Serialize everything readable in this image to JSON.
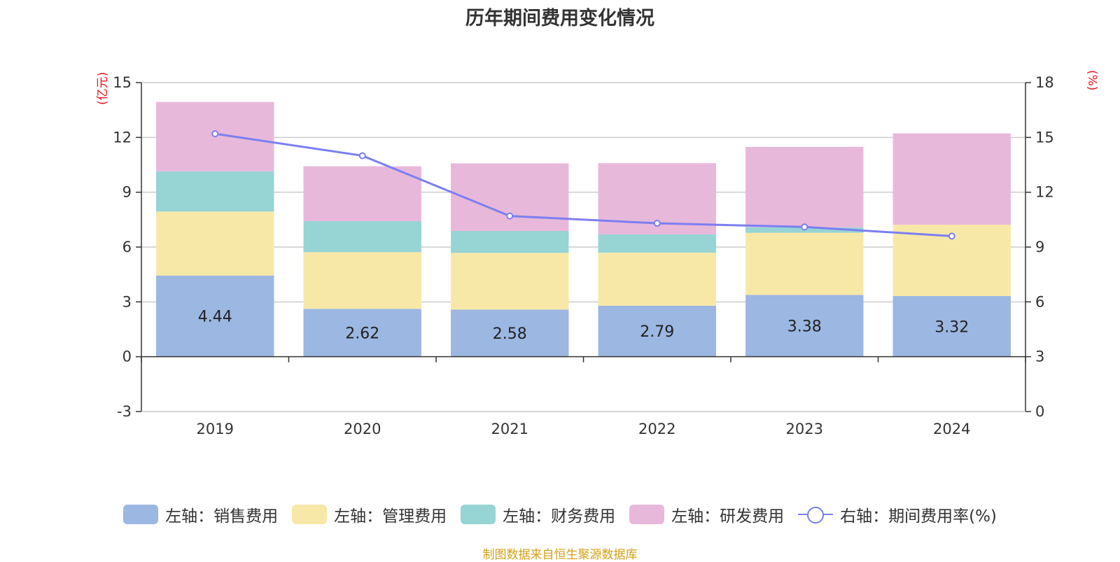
{
  "title": "历年期间费用变化情况",
  "left_unit": "(亿元)",
  "right_unit": "(%)",
  "source": "制图数据来自恒生聚源数据库",
  "chart_data": {
    "type": "bar",
    "stacked": true,
    "categories": [
      "2019",
      "2020",
      "2021",
      "2022",
      "2023",
      "2024"
    ],
    "series": [
      {
        "name": "左轴：销售费用",
        "axis": "left",
        "color": "#9bb7e2",
        "values": [
          4.44,
          2.62,
          2.58,
          2.79,
          3.38,
          3.32
        ],
        "labels": [
          "4.44",
          "2.62",
          "2.58",
          "2.79",
          "3.38",
          "3.32"
        ]
      },
      {
        "name": "左轴：管理费用",
        "axis": "left",
        "color": "#f8e8a8",
        "values": [
          3.5,
          3.1,
          3.1,
          2.9,
          3.4,
          3.9
        ]
      },
      {
        "name": "左轴：财务费用",
        "axis": "left",
        "color": "#97d4d4",
        "values": [
          2.2,
          1.7,
          1.2,
          1.0,
          0.3,
          0.0
        ]
      },
      {
        "name": "左轴：研发费用",
        "axis": "left",
        "color": "#e8b8da",
        "values": [
          3.8,
          3.0,
          3.7,
          3.9,
          4.4,
          5.0
        ]
      },
      {
        "name": "右轴：期间费用率(%)",
        "axis": "right",
        "type": "line",
        "color": "#7b7ff0",
        "values": [
          15.2,
          14.0,
          10.7,
          10.3,
          10.1,
          9.6
        ]
      }
    ],
    "y_left": {
      "min": -3,
      "max": 15,
      "ticks": [
        -3,
        0,
        3,
        6,
        9,
        12,
        15
      ]
    },
    "y_right": {
      "min": 0,
      "max": 18,
      "ticks": [
        0,
        3,
        6,
        9,
        12,
        15,
        18
      ]
    },
    "grid": true,
    "legend_position": "bottom"
  }
}
